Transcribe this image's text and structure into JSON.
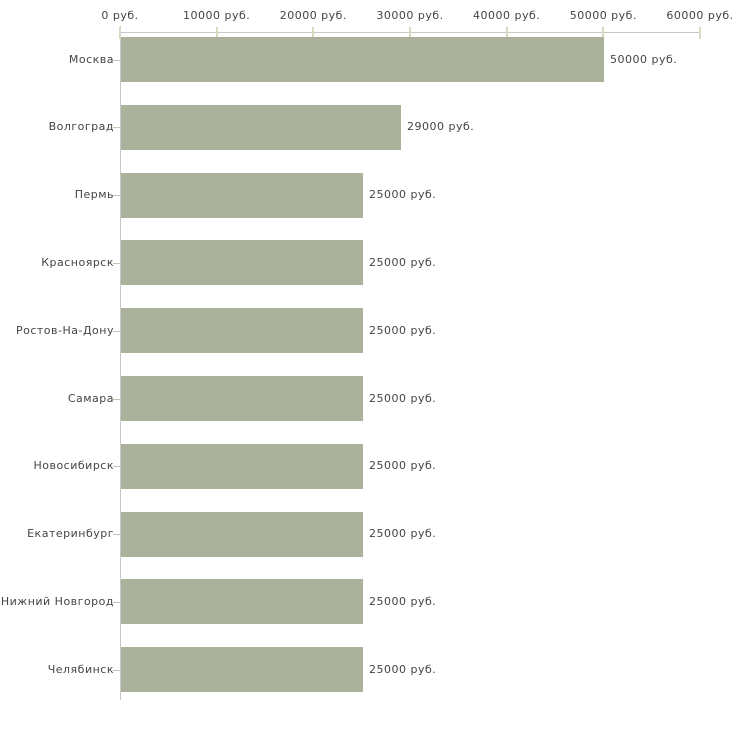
{
  "chart_data": {
    "type": "bar",
    "orientation": "horizontal",
    "title": "",
    "xlabel": "",
    "ylabel": "",
    "xlim": [
      0,
      60000
    ],
    "grid": false,
    "x_tick_values": [
      0,
      10000,
      20000,
      30000,
      40000,
      50000,
      60000
    ],
    "x_tick_labels": [
      "0 руб.",
      "10000 руб.",
      "20000 руб.",
      "30000 руб.",
      "40000 руб.",
      "50000 руб.",
      "60000 руб."
    ],
    "categories": [
      "Москва",
      "Волгоград",
      "Пермь",
      "Красноярск",
      "Ростов-На-Дону",
      "Самара",
      "Новосибирск",
      "Екатеринбург",
      "Нижний Новгород",
      "Челябинск"
    ],
    "values": [
      50000,
      29000,
      25000,
      25000,
      25000,
      25000,
      25000,
      25000,
      25000,
      25000
    ],
    "value_labels": [
      "50000 руб.",
      "29000 руб.",
      "25000 руб.",
      "25000 руб.",
      "25000 руб.",
      "25000 руб.",
      "25000 руб.",
      "25000 руб.",
      "25000 руб.",
      "25000 руб."
    ],
    "colors": {
      "bar": "#abb29b",
      "axis_line": "#c7c7c7",
      "x_tick": "#d9dac4",
      "y_tick": "#c6c6b8",
      "text": "#444444",
      "background": "#ffffff"
    }
  }
}
